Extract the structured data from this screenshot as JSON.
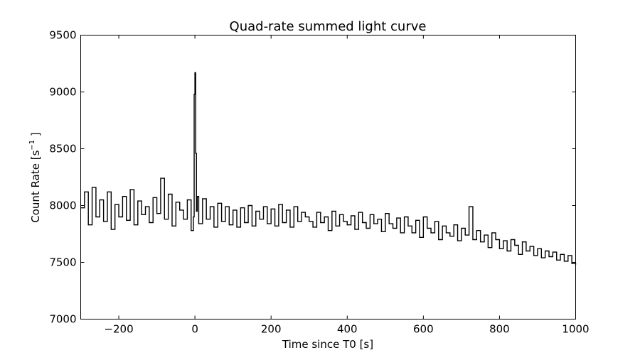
{
  "chart_data": {
    "type": "line",
    "title": "Quad-rate summed light curve",
    "xlabel": "Time since T0 [s]",
    "ylabel": {
      "prefix": "Count Rate [s",
      "exponent": "−1",
      "suffix": " ]"
    },
    "xlim": [
      -300,
      1000
    ],
    "ylim": [
      7000,
      9500
    ],
    "xticks": [
      -200,
      0,
      200,
      400,
      600,
      800,
      1000
    ],
    "yticks": [
      7000,
      7500,
      8000,
      8500,
      9000,
      9500
    ],
    "xtick_labels": [
      "−200",
      "0",
      "200",
      "400",
      "600",
      "800",
      "1000"
    ],
    "ytick_labels": [
      "7000",
      "7500",
      "8000",
      "8500",
      "9000",
      "9500"
    ],
    "grid": false,
    "step": true,
    "line_color": "#000000",
    "series": [
      {
        "x": [
          -300,
          -290,
          -280,
          -270,
          -260,
          -250,
          -240,
          -230,
          -220,
          -210,
          -200,
          -190,
          -180,
          -170,
          -160,
          -150,
          -140,
          -130,
          -120,
          -110,
          -100,
          -90,
          -80,
          -70,
          -60,
          -50,
          -40,
          -30,
          -20,
          -10,
          -4,
          -2,
          0,
          2,
          4,
          6,
          10,
          20,
          30,
          40,
          50,
          60,
          70,
          80,
          90,
          100,
          110,
          120,
          130,
          140,
          150,
          160,
          170,
          180,
          190,
          200,
          210,
          220,
          230,
          240,
          250,
          260,
          270,
          280,
          290,
          300,
          310,
          320,
          330,
          340,
          350,
          360,
          370,
          380,
          390,
          400,
          410,
          420,
          430,
          440,
          450,
          460,
          470,
          480,
          490,
          500,
          510,
          520,
          530,
          540,
          550,
          560,
          570,
          580,
          590,
          600,
          610,
          620,
          630,
          640,
          650,
          660,
          670,
          680,
          690,
          700,
          710,
          720,
          730,
          740,
          750,
          760,
          770,
          780,
          790,
          800,
          810,
          820,
          830,
          840,
          850,
          860,
          870,
          880,
          890,
          900,
          910,
          920,
          930,
          940,
          950,
          960,
          970,
          980,
          990,
          1000
        ],
        "y": [
          7980,
          8120,
          7830,
          8160,
          7900,
          8050,
          7860,
          8120,
          7790,
          8010,
          7900,
          8080,
          7870,
          8140,
          7830,
          8040,
          7920,
          7990,
          7850,
          8070,
          7930,
          8240,
          7880,
          8100,
          7820,
          8030,
          7960,
          7880,
          8050,
          7780,
          7900,
          8980,
          9170,
          8460,
          7950,
          8080,
          7840,
          8060,
          7880,
          7990,
          7810,
          8020,
          7860,
          7990,
          7830,
          7960,
          7810,
          7980,
          7850,
          8000,
          7820,
          7950,
          7880,
          7990,
          7840,
          7970,
          7820,
          8010,
          7850,
          7960,
          7810,
          7990,
          7860,
          7940,
          7900,
          7860,
          7810,
          7940,
          7850,
          7900,
          7780,
          7950,
          7820,
          7920,
          7860,
          7830,
          7910,
          7790,
          7940,
          7850,
          7800,
          7920,
          7840,
          7880,
          7770,
          7930,
          7840,
          7800,
          7890,
          7760,
          7900,
          7820,
          7760,
          7870,
          7720,
          7900,
          7800,
          7760,
          7860,
          7700,
          7820,
          7760,
          7730,
          7830,
          7690,
          7800,
          7740,
          7990,
          7700,
          7780,
          7680,
          7740,
          7630,
          7760,
          7700,
          7620,
          7690,
          7600,
          7700,
          7650,
          7570,
          7680,
          7600,
          7640,
          7560,
          7620,
          7540,
          7600,
          7550,
          7590,
          7520,
          7570,
          7510,
          7560,
          7490,
          7480
        ]
      }
    ]
  }
}
